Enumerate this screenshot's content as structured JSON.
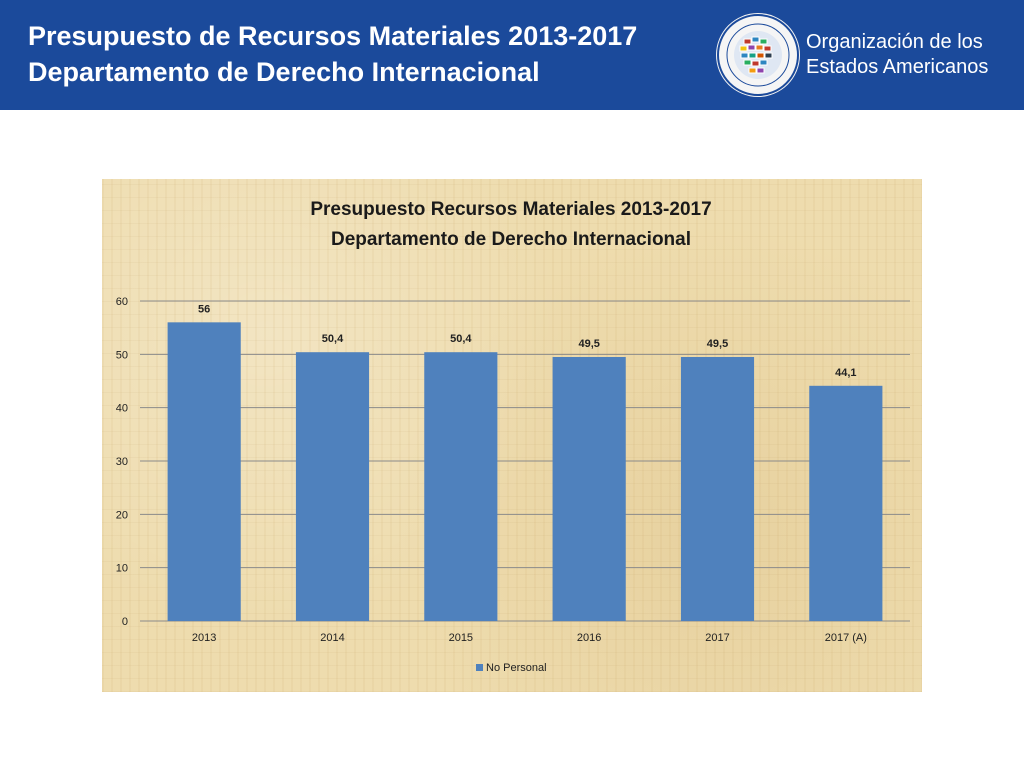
{
  "header": {
    "title_line1": "Presupuesto de Recursos Materiales 2013-2017",
    "title_line2": "Departamento de Derecho Internacional",
    "org_line1": "Organización de los",
    "org_line2": "Estados Americanos",
    "seal_icon": "oas-seal-icon"
  },
  "colors": {
    "header_bg": "#1b4a9b",
    "bar": "#4f81bd",
    "gridline": "#8a8a8a"
  },
  "chart_data": {
    "type": "bar",
    "title_line1": "Presupuesto Recursos Materiales 2013-2017",
    "title_line2": "Departamento de Derecho Internacional",
    "categories": [
      "2013",
      "2014",
      "2015",
      "2016",
      "2017",
      "2017 (A)"
    ],
    "series": [
      {
        "name": "No Personal",
        "values": [
          56,
          50.4,
          50.4,
          49.5,
          49.5,
          44.1
        ],
        "labels": [
          "56",
          "50,4",
          "50,4",
          "49,5",
          "49,5",
          "44,1"
        ]
      }
    ],
    "ylim": [
      0,
      60
    ],
    "yticks": [
      0,
      10,
      20,
      30,
      40,
      50,
      60
    ],
    "grid": true,
    "legend_position": "bottom"
  }
}
